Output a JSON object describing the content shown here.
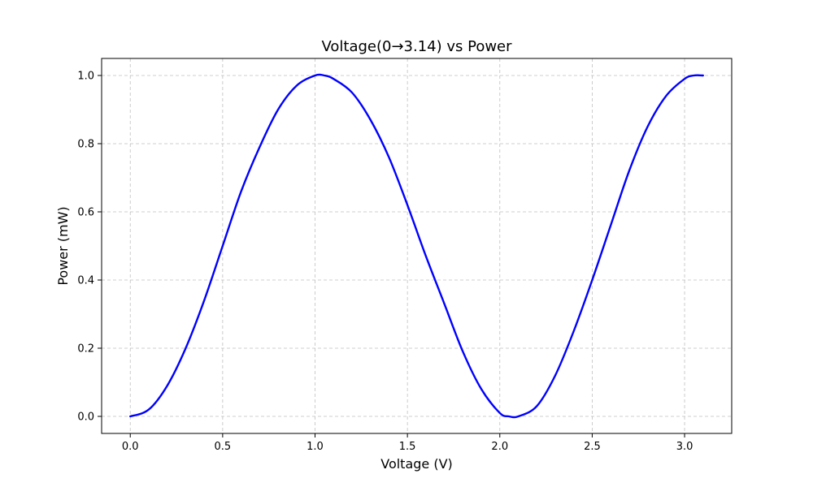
{
  "chart_data": {
    "type": "line",
    "title": "Voltage(0→3.14) vs Power",
    "xlabel": "Voltage (V)",
    "ylabel": "Power (mW)",
    "xlim": [
      -0.155,
      3.255
    ],
    "ylim": [
      -0.05,
      1.05
    ],
    "xticks": [
      0.0,
      0.5,
      1.0,
      1.5,
      2.0,
      2.5,
      3.0
    ],
    "xtick_labels": [
      "0.0",
      "0.5",
      "1.0",
      "1.5",
      "2.0",
      "2.5",
      "3.0"
    ],
    "yticks": [
      0.0,
      0.2,
      0.4,
      0.6,
      0.8,
      1.0
    ],
    "ytick_labels": [
      "0.0",
      "0.2",
      "0.4",
      "0.6",
      "0.8",
      "1.0"
    ],
    "grid": true,
    "legend": false,
    "series": [
      {
        "color": "#0000ff",
        "x": [
          0.0,
          0.1,
          0.2,
          0.3,
          0.4,
          0.5,
          0.6,
          0.7,
          0.8,
          0.9,
          1.0,
          1.05,
          1.1,
          1.2,
          1.3,
          1.4,
          1.5,
          1.6,
          1.7,
          1.8,
          1.9,
          2.0,
          2.05,
          2.1,
          2.2,
          2.3,
          2.4,
          2.5,
          2.6,
          2.7,
          2.8,
          2.9,
          3.0,
          3.05,
          3.1
        ],
        "y": [
          0.0,
          0.02,
          0.09,
          0.2,
          0.34,
          0.5,
          0.66,
          0.79,
          0.9,
          0.97,
          1.0,
          1.0,
          0.99,
          0.95,
          0.87,
          0.76,
          0.62,
          0.47,
          0.33,
          0.19,
          0.08,
          0.01,
          0.0,
          0.0,
          0.03,
          0.12,
          0.25,
          0.4,
          0.56,
          0.72,
          0.85,
          0.94,
          0.99,
          1.0,
          1.0
        ]
      }
    ]
  }
}
